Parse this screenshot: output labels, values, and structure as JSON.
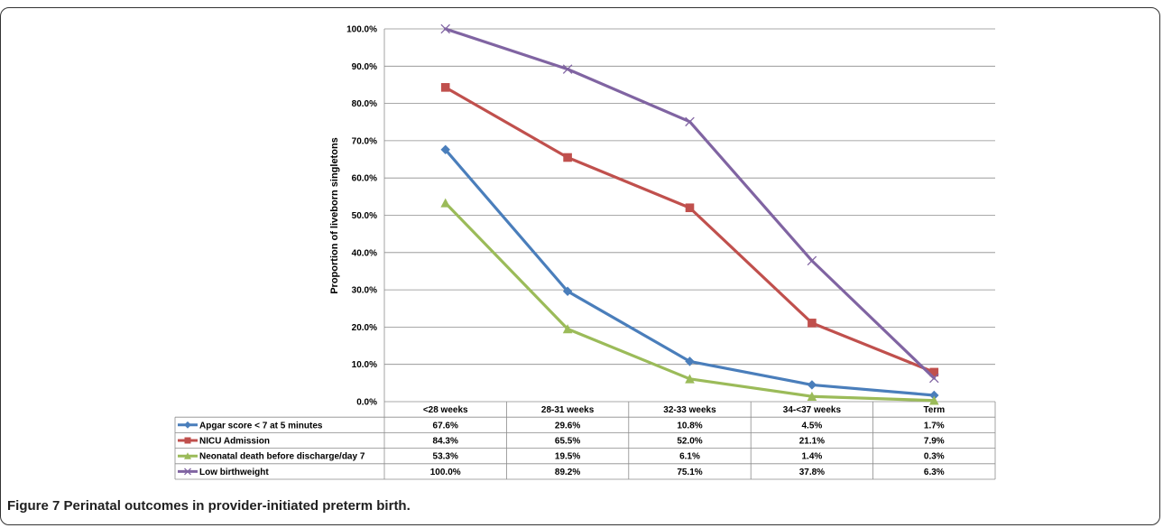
{
  "caption": {
    "label": "Figure 7",
    "text": "Perinatal outcomes in provider-initiated preterm birth."
  },
  "chart_data": {
    "type": "line",
    "ylabel": "Proportion of liveborn singletons",
    "xlabel": "",
    "ylim": [
      0,
      100
    ],
    "yticks": [
      "0.0%",
      "10.0%",
      "20.0%",
      "30.0%",
      "40.0%",
      "50.0%",
      "60.0%",
      "70.0%",
      "80.0%",
      "90.0%",
      "100.0%"
    ],
    "categories": [
      "<28 weeks",
      "28-31 weeks",
      "32-33 weeks",
      "34-<37 weeks",
      "Term"
    ],
    "grid": true,
    "legend": "data table below chart",
    "series": [
      {
        "name": "Apgar score < 7 at 5 minutes",
        "color": "#4a7ebb",
        "marker": "diamond",
        "values": [
          67.6,
          29.6,
          10.8,
          4.5,
          1.7
        ],
        "labels": [
          "67.6%",
          "29.6%",
          "10.8%",
          "4.5%",
          "1.7%"
        ]
      },
      {
        "name": "NICU Admission",
        "color": "#c0504d",
        "marker": "square",
        "values": [
          84.3,
          65.5,
          52.0,
          21.1,
          7.9
        ],
        "labels": [
          "84.3%",
          "65.5%",
          "52.0%",
          "21.1%",
          "7.9%"
        ]
      },
      {
        "name": "Neonatal death before discharge/day 7",
        "color": "#9bbb59",
        "marker": "triangle",
        "values": [
          53.3,
          19.5,
          6.1,
          1.4,
          0.3
        ],
        "labels": [
          "53.3%",
          "19.5%",
          "6.1%",
          "1.4%",
          "0.3%"
        ]
      },
      {
        "name": "Low birthweight",
        "color": "#8064a2",
        "marker": "x",
        "values": [
          100.0,
          89.2,
          75.1,
          37.8,
          6.3
        ],
        "labels": [
          "100.0%",
          "89.2%",
          "75.1%",
          "37.8%",
          "6.3%"
        ]
      }
    ]
  }
}
